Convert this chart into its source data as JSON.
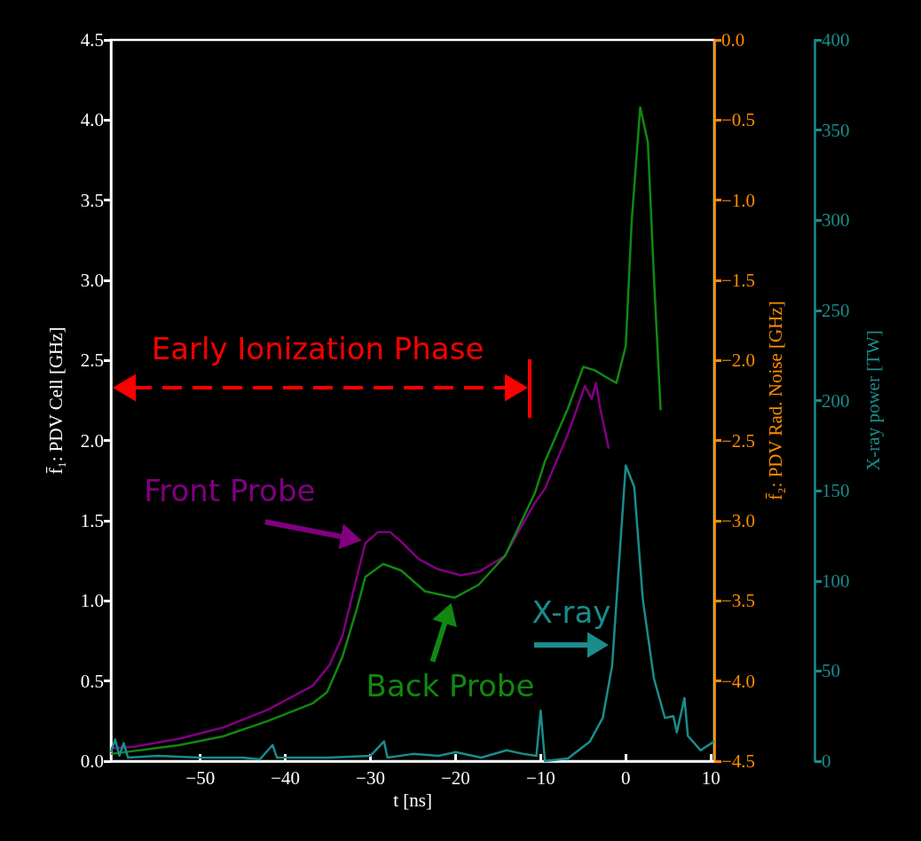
{
  "chart_data": {
    "type": "line",
    "xlabel": "t [ns]",
    "ylabel": "f̄₁: PDV Cell [GHz]",
    "y2label": "f̄₂: PDV Rad. Noise [GHz]",
    "y3label": "X-ray power [TW]",
    "xlim": [
      -60.5,
      10.4
    ],
    "xticks": [
      {
        "value": -50,
        "label": "−50"
      },
      {
        "value": -40,
        "label": "−40"
      },
      {
        "value": -30,
        "label": "−30"
      },
      {
        "value": -20,
        "label": "−20"
      },
      {
        "value": -10,
        "label": "−10"
      },
      0,
      10
    ],
    "ylim": [
      0,
      4.5
    ],
    "yticks": [
      {
        "value": 0,
        "label": "0.0"
      },
      {
        "value": 0.5,
        "label": "0.5"
      },
      {
        "value": 1,
        "label": "1.0"
      },
      {
        "value": 1.5,
        "label": "1.5"
      },
      {
        "value": 2,
        "label": "2.0"
      },
      {
        "value": 2.5,
        "label": "2.5"
      },
      {
        "value": 3,
        "label": "3.0"
      },
      {
        "value": 3.5,
        "label": "3.5"
      },
      {
        "value": 4,
        "label": "4.0"
      },
      {
        "value": 4.5,
        "label": "4.5"
      }
    ],
    "y2lim": [
      -4.5,
      0
    ],
    "y2ticks": [
      {
        "value": 0,
        "label": "0.0"
      },
      {
        "value": -0.5,
        "label": "−0.5"
      },
      {
        "value": -1,
        "label": "−1.0"
      },
      {
        "value": -1.5,
        "label": "−1.5"
      },
      {
        "value": -2,
        "label": "−2.0"
      },
      {
        "value": -2.5,
        "label": "−2.5"
      },
      {
        "value": -3,
        "label": "−3.0"
      },
      {
        "value": -3.5,
        "label": "−3.5"
      },
      {
        "value": -4,
        "label": "−4.0"
      },
      {
        "value": -4.5,
        "label": "−4.5"
      }
    ],
    "y3lim": [
      0,
      400
    ],
    "y3ticks": [
      0,
      50,
      100,
      150,
      200,
      250,
      300,
      350,
      400
    ],
    "grid": false,
    "marker": "none",
    "line_style": "solid",
    "annotations": [
      "Early Ionization Phase",
      {
        "text": "Front Probe",
        "x": -30.6,
        "y": 1.36
      },
      {
        "text": "Back Probe",
        "x": -20.1,
        "y": 1.02
      },
      "X-ray"
    ],
    "series": [
      {
        "color": "#800080",
        "x": [
          -60.5,
          -57.8,
          -52.5,
          -47.3,
          -42.1,
          -36.8,
          -34.8,
          -33.3,
          -31.6,
          -30.6,
          -29.1,
          -27.7,
          -26.4,
          -24.3,
          -22.2,
          -19.4,
          -17.3,
          -14.2,
          -12.1,
          -10.7,
          -9.5,
          -6.8,
          -4.8,
          -4.0,
          -3.5,
          -3.0,
          -2.0
        ],
        "values": [
          0.08,
          0.09,
          0.14,
          0.21,
          0.32,
          0.47,
          0.6,
          0.78,
          1.15,
          1.36,
          1.43,
          1.43,
          1.37,
          1.26,
          1.2,
          1.16,
          1.18,
          1.28,
          1.48,
          1.61,
          1.7,
          2.04,
          2.34,
          2.26,
          2.36,
          2.2,
          1.95
        ]
      },
      {
        "color": "#118811",
        "x": [
          -60.5,
          -52.5,
          -47.3,
          -42.1,
          -36.8,
          -35.1,
          -33.3,
          -31.6,
          -30.6,
          -28.5,
          -26.4,
          -23.6,
          -20.1,
          -17.3,
          -14.2,
          -10.7,
          -9.5,
          -6.8,
          -5.0,
          -3.7,
          -2.1,
          -1.1,
          0,
          0.7,
          1.7,
          2.6,
          3.3,
          4.1
        ],
        "values": [
          0.045,
          0.1,
          0.155,
          0.25,
          0.36,
          0.43,
          0.65,
          0.95,
          1.15,
          1.23,
          1.19,
          1.06,
          1.02,
          1.1,
          1.28,
          1.67,
          1.87,
          2.2,
          2.46,
          2.44,
          2.39,
          2.36,
          2.59,
          3.37,
          4.08,
          3.86,
          3.03,
          2.19
        ]
      },
      {
        "color": "#1a8c8c",
        "axis": "y3",
        "x": [
          -60.5,
          -60,
          -59.5,
          -59,
          -58.5,
          -55,
          -50,
          -45,
          -43,
          -41.5,
          -41,
          -35,
          -30,
          -28.4,
          -28,
          -25,
          -22,
          -20,
          -17,
          -14,
          -12,
          -10.5,
          -10,
          -9.5,
          -6.8,
          -4.2,
          -2.7,
          -1.6,
          -0.9,
          0,
          1,
          2,
          3.3,
          4.6,
          5.6,
          6.0,
          6.9,
          7.3,
          8.8,
          10.4
        ],
        "values": [
          5,
          12,
          3,
          10,
          2,
          3,
          2,
          2,
          1,
          9,
          2,
          2,
          3,
          11,
          2,
          4,
          3,
          5,
          2,
          6,
          4,
          3,
          28,
          0,
          1.5,
          11,
          24,
          53,
          102,
          164,
          152,
          90,
          46,
          24,
          25,
          16,
          35,
          14,
          6,
          11
        ]
      }
    ]
  }
}
